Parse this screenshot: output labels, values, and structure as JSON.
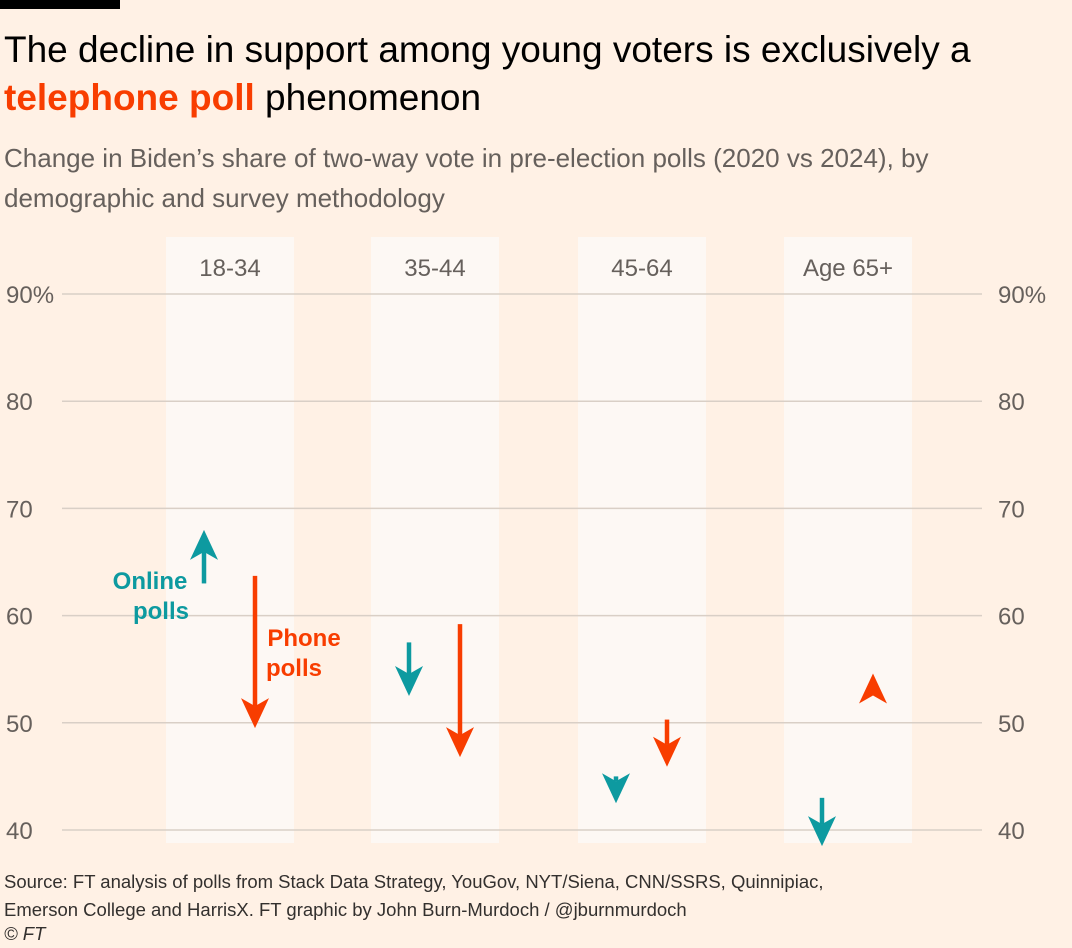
{
  "header": {
    "title_pre": "The decline in support among young voters is exclusively a ",
    "title_highlight": "telephone poll",
    "title_post": " phenomenon",
    "subtitle": "Change in Biden’s share of two-way vote in pre-election polls (2020 vs 2024), by demographic and survey methodology"
  },
  "colors": {
    "background": "#fff1e5",
    "panel": "#fdf8f4",
    "online": "#0d9aa0",
    "phone": "#f83d00",
    "grid": "#d9cfc6",
    "axis_text": "#66605c"
  },
  "chart_data": {
    "type": "arrow",
    "ylim": [
      40,
      90
    ],
    "yticks": [
      40,
      50,
      60,
      70,
      80,
      90
    ],
    "ytick_labels": [
      "40",
      "50",
      "60",
      "70",
      "80",
      "90%"
    ],
    "categories": [
      "18-34",
      "35-44",
      "45-64",
      "Age 65+"
    ],
    "series": [
      {
        "name": "Online polls",
        "color": "#0d9aa0",
        "from": [
          63.0,
          57.5,
          45.0,
          43.0
        ],
        "to": [
          68.0,
          52.5,
          42.5,
          38.5
        ]
      },
      {
        "name": "Phone polls",
        "color": "#f83d00",
        "from": [
          63.7,
          59.2,
          50.3,
          53.5
        ],
        "to": [
          49.5,
          46.8,
          45.9,
          54.6
        ]
      }
    ],
    "annotations": {
      "online_line1": "Online",
      "online_line2": "polls",
      "phone_line1": "Phone",
      "phone_line2": "polls"
    }
  },
  "footer": {
    "source_line1": "Source: FT analysis of polls from Stack Data Strategy, YouGov, NYT/Siena, CNN/SSRS, Quinnipiac,",
    "source_line2": "Emerson College and HarrisX. FT graphic by John Burn-Murdoch / @jburnmurdoch",
    "copyright": "© FT"
  }
}
